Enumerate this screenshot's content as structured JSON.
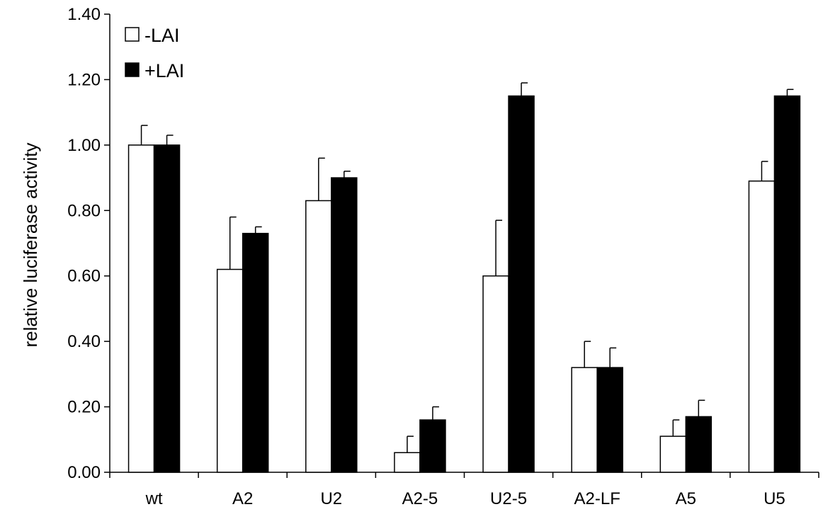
{
  "chart_data": {
    "type": "bar",
    "title": "",
    "xlabel": "",
    "ylabel": "relative luciferase activity",
    "ylim": [
      0,
      1.4
    ],
    "yticks": [
      "0.00",
      "0.20",
      "0.40",
      "0.60",
      "0.80",
      "1.00",
      "1.20",
      "1.40"
    ],
    "grid": false,
    "legend_position": "top-left",
    "categories": [
      "wt",
      "A2",
      "U2",
      "A2-5",
      "U2-5",
      "A2-LF",
      "A5",
      "U5"
    ],
    "series": [
      {
        "name": "-LAI",
        "color": "#ffffff",
        "values": [
          1.0,
          0.62,
          0.83,
          0.06,
          0.6,
          0.32,
          0.11,
          0.89
        ],
        "errors": [
          0.06,
          0.16,
          0.13,
          0.05,
          0.17,
          0.08,
          0.05,
          0.06
        ]
      },
      {
        "name": "+LAI",
        "color": "#000000",
        "values": [
          1.0,
          0.73,
          0.9,
          0.16,
          1.15,
          0.32,
          0.17,
          1.15
        ],
        "errors": [
          0.03,
          0.02,
          0.02,
          0.04,
          0.04,
          0.06,
          0.05,
          0.02
        ]
      }
    ]
  }
}
